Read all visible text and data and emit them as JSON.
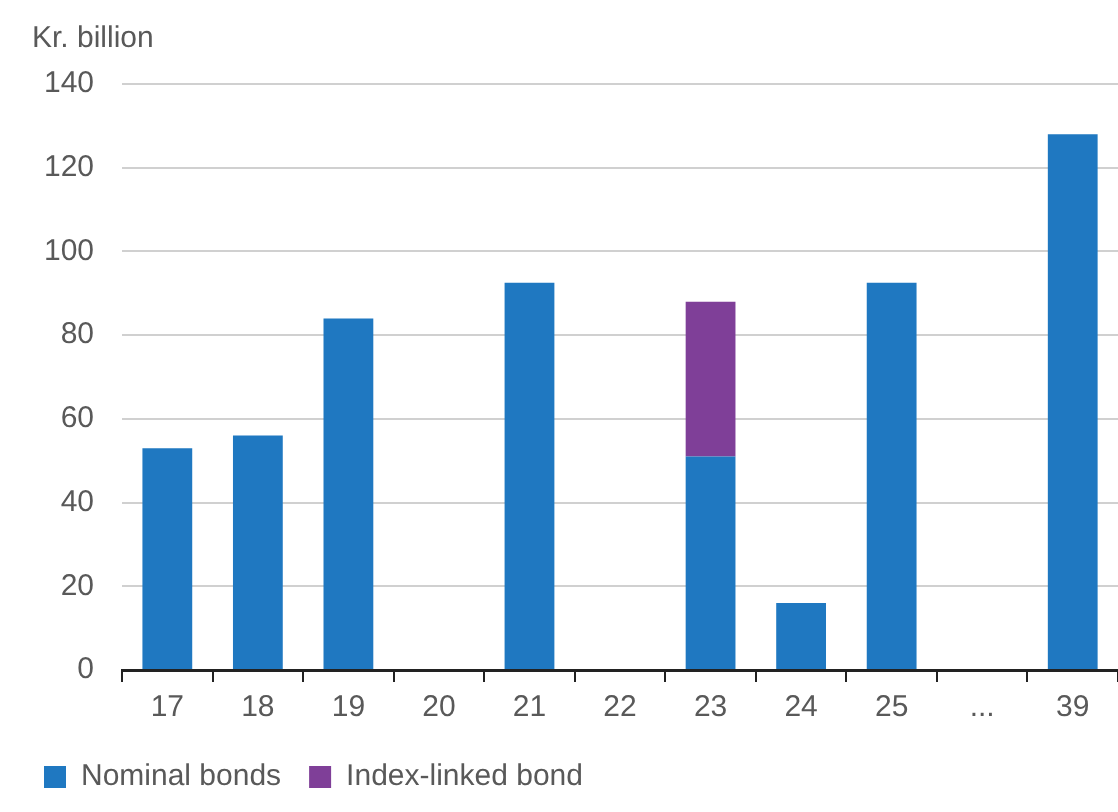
{
  "chart_data": {
    "type": "bar",
    "ylabel": "Kr. billion",
    "categories": [
      "17",
      "18",
      "19",
      "20",
      "21",
      "22",
      "23",
      "24",
      "25",
      "...",
      "39"
    ],
    "stacked": true,
    "series": [
      {
        "name": "Nominal bonds",
        "color": "#1f78c1",
        "values": [
          53,
          56,
          84,
          null,
          92.5,
          null,
          51,
          16,
          92.5,
          null,
          128
        ]
      },
      {
        "name": "Index-linked bond",
        "color": "#7f3f98",
        "values": [
          null,
          null,
          null,
          null,
          null,
          null,
          37,
          null,
          null,
          null,
          null
        ]
      }
    ],
    "ylim": [
      0,
      140
    ],
    "yticks": [
      0,
      20,
      40,
      60,
      80,
      100,
      120,
      140
    ],
    "grid": "y",
    "legend": "bottom"
  }
}
